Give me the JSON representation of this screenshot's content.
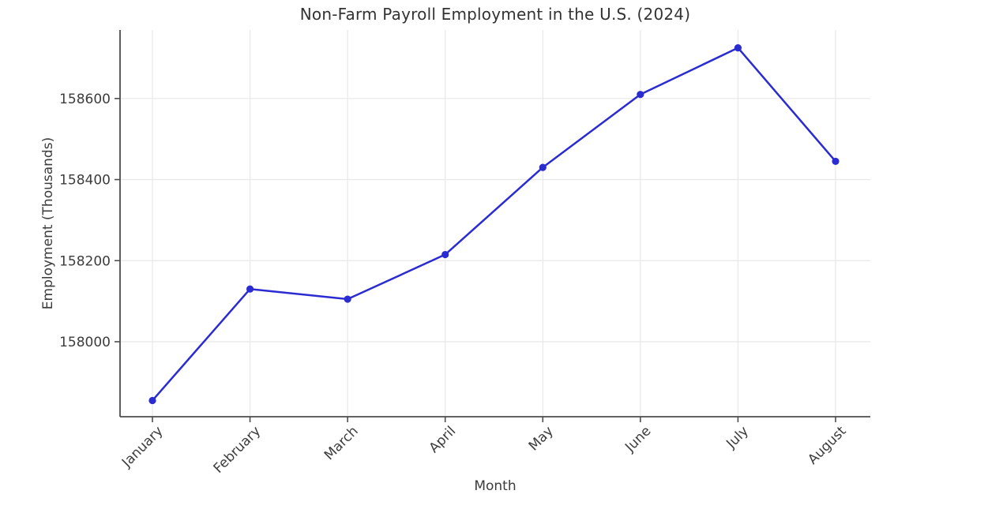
{
  "chart_data": {
    "type": "line",
    "title": "Non-Farm Payroll Employment in the U.S. (2024)",
    "xlabel": "Month",
    "ylabel": "Employment (Thousands)",
    "categories": [
      "January",
      "February",
      "March",
      "April",
      "May",
      "June",
      "July",
      "August"
    ],
    "series": [
      {
        "name": "Non-Farm Payroll Employment",
        "values": [
          157855,
          158130,
          158105,
          158215,
          158430,
          158610,
          158725,
          158445
        ]
      }
    ],
    "yticks": [
      158000,
      158200,
      158400,
      158600
    ],
    "ylim": [
      157815,
      158769
    ],
    "grid": true,
    "legend": "none",
    "colors": {
      "line": "#2b2bd2",
      "marker": "#2b2bd2",
      "grid": "#e8e8e8",
      "axis": "#4d4d4d",
      "tick_text": "#3c3c3c",
      "title_text": "#333333",
      "background": "#ffffff"
    }
  }
}
